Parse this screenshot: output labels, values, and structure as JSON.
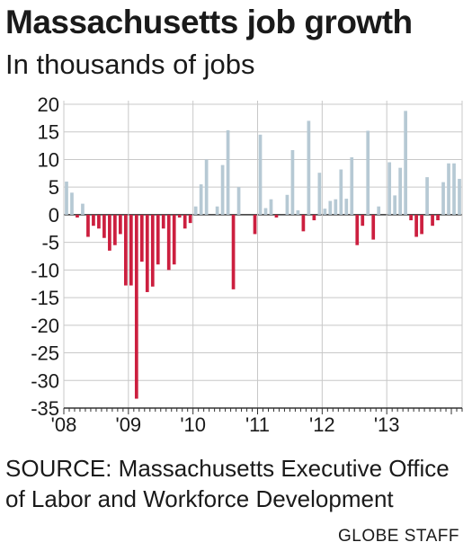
{
  "title": "Massachusetts job growth",
  "subtitle": "In thousands of jobs",
  "source": "SOURCE: Massachusetts Executive Office of Labor and Workforce Development",
  "credit": "GLOBE STAFF",
  "colors": {
    "positive": "#b6c9d4",
    "negative": "#cc1f3f",
    "grid": "#c8c8c8",
    "axis": "#333333"
  },
  "chart_data": {
    "type": "bar",
    "title": "Massachusetts job growth",
    "subtitle": "In thousands of jobs",
    "xlabel": "",
    "ylabel": "",
    "ylim": [
      -35,
      20
    ],
    "yticks": [
      20,
      15,
      10,
      5,
      0,
      -5,
      -10,
      -15,
      -20,
      -25,
      -30,
      -35
    ],
    "year_labels": [
      "'08",
      "'09",
      "'10",
      "'11",
      "'12",
      "'13"
    ],
    "grid": true,
    "legend": "none",
    "months_start": "2008-01",
    "values": [
      6,
      4,
      -0.5,
      2,
      -4,
      -2,
      -2.5,
      -4.2,
      -6.5,
      -5.5,
      -3.5,
      -12.8,
      -12.8,
      -33.3,
      -8.5,
      -14,
      -13,
      -9,
      -2.5,
      -10,
      -9,
      -0.5,
      -2.5,
      -1.5,
      1.5,
      5.5,
      10,
      0,
      1.5,
      9,
      15.3,
      -13.5,
      5,
      0,
      0,
      -3.5,
      14.5,
      1.2,
      2.8,
      -0.5,
      0,
      3.6,
      11.7,
      0.8,
      -3,
      17,
      -1,
      7.6,
      1.1,
      2.5,
      2.8,
      8.2,
      2.9,
      10.4,
      -5.5,
      -2,
      15.2,
      -4.5,
      1.5,
      0,
      9.5,
      3.5,
      8.5,
      18.8,
      -1,
      -4,
      -3.5,
      6.8,
      -2,
      -1,
      5.9,
      9.3,
      9.3,
      6.5
    ]
  }
}
